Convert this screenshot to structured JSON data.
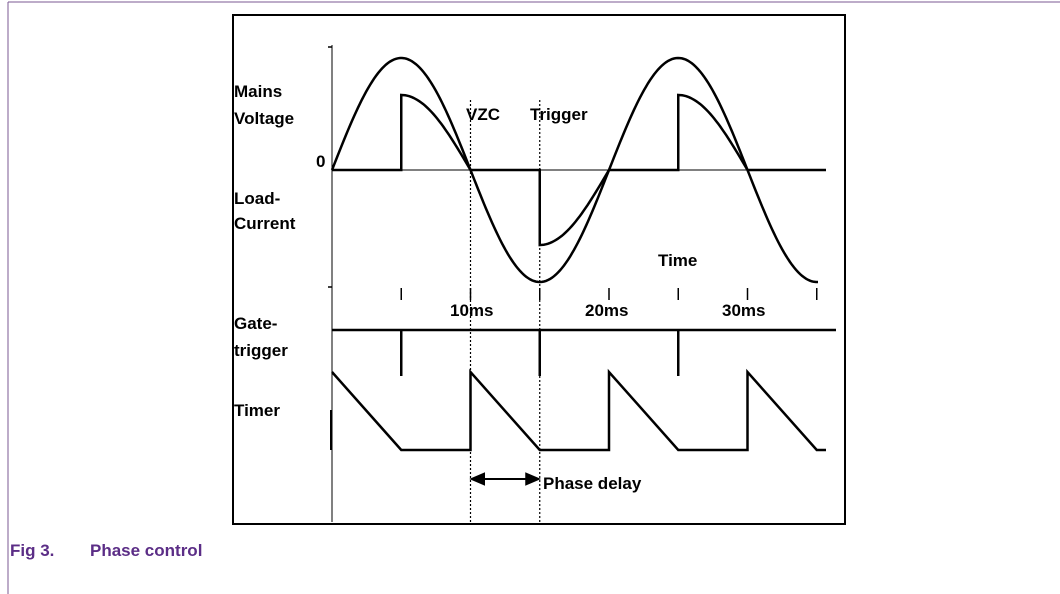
{
  "figure": {
    "labels": {
      "mains": "Mains",
      "voltage": "Voltage",
      "zero": "0",
      "vzc": "VZC",
      "trigger": "Trigger",
      "load": "Load-",
      "current": "Current",
      "time": "Time",
      "t10": "10ms",
      "t20": "20ms",
      "t30": "30ms",
      "gate": "Gate-",
      "gatetrigger": "trigger",
      "timer": "Timer",
      "phase_delay": "Phase delay"
    },
    "caption": {
      "number": "Fig 3.",
      "title": "Phase control"
    }
  }
}
